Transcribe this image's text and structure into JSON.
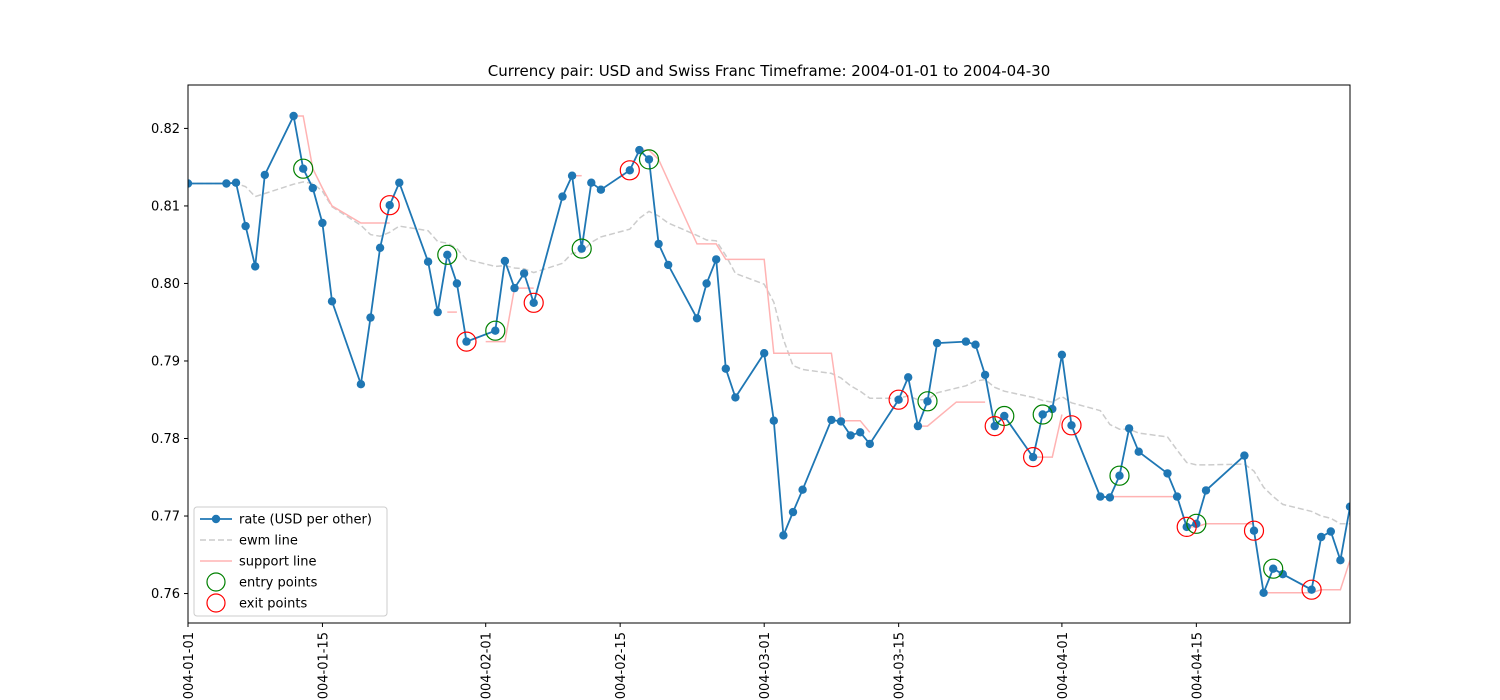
{
  "chart_data": {
    "type": "line",
    "title": "Currency pair: USD and Swiss Franc  Timeframe: 2004-01-01 to 2004-04-30",
    "xlabel": "",
    "ylabel": "",
    "xlim": [
      "2004-01-01",
      "2004-04-30"
    ],
    "ylim": [
      0.7562,
      0.8256
    ],
    "x_ticks": [
      "2004-01-01",
      "2004-01-15",
      "2004-02-01",
      "2004-02-15",
      "2004-03-01",
      "2004-03-15",
      "2004-04-01",
      "2004-04-15"
    ],
    "y_ticks": [
      0.76,
      0.77,
      0.78,
      0.79,
      0.8,
      0.81,
      0.82
    ],
    "y_tick_labels": [
      "0.76",
      "0.77",
      "0.78",
      "0.79",
      "0.80",
      "0.81",
      "0.82"
    ],
    "grid": false,
    "legend": {
      "placement": "lower-left",
      "entries": [
        {
          "label": "rate (USD per other)",
          "style": "line-marker",
          "color": "#1f77b4"
        },
        {
          "label": "ewm line",
          "style": "dashed",
          "color": "#cccccc"
        },
        {
          "label": "support line",
          "style": "line",
          "color": "#ffb3b3"
        },
        {
          "label": "entry points",
          "style": "circle",
          "color": "#008000"
        },
        {
          "label": "exit points",
          "style": "circle",
          "color": "#ff0000"
        }
      ]
    },
    "series": [
      {
        "name": "rate (USD per other)",
        "color": "#1f77b4",
        "points": [
          [
            "2004-01-01",
            0.8129
          ],
          [
            "2004-01-05",
            0.8129
          ],
          [
            "2004-01-06",
            0.813
          ],
          [
            "2004-01-07",
            0.8074
          ],
          [
            "2004-01-08",
            0.8022
          ],
          [
            "2004-01-09",
            0.814
          ],
          [
            "2004-01-12",
            0.8216
          ],
          [
            "2004-01-13",
            0.8148
          ],
          [
            "2004-01-14",
            0.8123
          ],
          [
            "2004-01-15",
            0.8078
          ],
          [
            "2004-01-16",
            0.7977
          ],
          [
            "2004-01-19",
            0.787
          ],
          [
            "2004-01-20",
            0.7956
          ],
          [
            "2004-01-21",
            0.8046
          ],
          [
            "2004-01-22",
            0.8101
          ],
          [
            "2004-01-23",
            0.813
          ],
          [
            "2004-01-26",
            0.8028
          ],
          [
            "2004-01-27",
            0.7963
          ],
          [
            "2004-01-28",
            0.8037
          ],
          [
            "2004-01-29",
            0.8
          ],
          [
            "2004-01-30",
            0.7925
          ],
          [
            "2004-02-02",
            0.7939
          ],
          [
            "2004-02-03",
            0.8029
          ],
          [
            "2004-02-04",
            0.7994
          ],
          [
            "2004-02-05",
            0.8013
          ],
          [
            "2004-02-06",
            0.7975
          ],
          [
            "2004-02-09",
            0.8112
          ],
          [
            "2004-02-10",
            0.8139
          ],
          [
            "2004-02-11",
            0.8045
          ],
          [
            "2004-02-12",
            0.813
          ],
          [
            "2004-02-13",
            0.8121
          ],
          [
            "2004-02-16",
            0.8146
          ],
          [
            "2004-02-17",
            0.8172
          ],
          [
            "2004-02-18",
            0.816
          ],
          [
            "2004-02-19",
            0.8051
          ],
          [
            "2004-02-20",
            0.8024
          ],
          [
            "2004-02-23",
            0.7955
          ],
          [
            "2004-02-24",
            0.8
          ],
          [
            "2004-02-25",
            0.8031
          ],
          [
            "2004-02-26",
            0.789
          ],
          [
            "2004-02-27",
            0.7853
          ],
          [
            "2004-03-01",
            0.791
          ],
          [
            "2004-03-02",
            0.7823
          ],
          [
            "2004-03-03",
            0.7675
          ],
          [
            "2004-03-04",
            0.7705
          ],
          [
            "2004-03-05",
            0.7734
          ],
          [
            "2004-03-08",
            0.7824
          ],
          [
            "2004-03-09",
            0.7822
          ],
          [
            "2004-03-10",
            0.7804
          ],
          [
            "2004-03-11",
            0.7808
          ],
          [
            "2004-03-12",
            0.7793
          ],
          [
            "2004-03-15",
            0.785
          ],
          [
            "2004-03-16",
            0.7879
          ],
          [
            "2004-03-17",
            0.7816
          ],
          [
            "2004-03-18",
            0.7848
          ],
          [
            "2004-03-19",
            0.7923
          ],
          [
            "2004-03-22",
            0.7925
          ],
          [
            "2004-03-23",
            0.7921
          ],
          [
            "2004-03-24",
            0.7882
          ],
          [
            "2004-03-25",
            0.7816
          ],
          [
            "2004-03-26",
            0.7829
          ],
          [
            "2004-03-29",
            0.7776
          ],
          [
            "2004-03-30",
            0.7831
          ],
          [
            "2004-03-31",
            0.7838
          ],
          [
            "2004-04-01",
            0.7908
          ],
          [
            "2004-04-02",
            0.7817
          ],
          [
            "2004-04-05",
            0.7725
          ],
          [
            "2004-04-06",
            0.7724
          ],
          [
            "2004-04-07",
            0.7752
          ],
          [
            "2004-04-08",
            0.7813
          ],
          [
            "2004-04-09",
            0.7783
          ],
          [
            "2004-04-12",
            0.7755
          ],
          [
            "2004-04-13",
            0.7725
          ],
          [
            "2004-04-14",
            0.7686
          ],
          [
            "2004-04-15",
            0.769
          ],
          [
            "2004-04-16",
            0.7733
          ],
          [
            "2004-04-20",
            0.7778
          ],
          [
            "2004-04-21",
            0.7681
          ],
          [
            "2004-04-22",
            0.7601
          ],
          [
            "2004-04-23",
            0.7632
          ],
          [
            "2004-04-24",
            0.7625
          ],
          [
            "2004-04-27",
            0.7605
          ],
          [
            "2004-04-28",
            0.7673
          ],
          [
            "2004-04-29",
            0.768
          ],
          [
            "2004-04-30",
            0.7643
          ],
          [
            "2004-05-01",
            0.7712
          ]
        ]
      },
      {
        "name": "ewm line",
        "color": "#cccccc",
        "points": [
          [
            "2004-01-01",
            0.8129
          ],
          [
            "2004-01-05",
            0.8129
          ],
          [
            "2004-01-06",
            0.8129
          ],
          [
            "2004-01-07",
            0.8125
          ],
          [
            "2004-01-08",
            0.8112
          ],
          [
            "2004-01-09",
            0.8116
          ],
          [
            "2004-01-12",
            0.8128
          ],
          [
            "2004-01-13",
            0.8131
          ],
          [
            "2004-01-14",
            0.8129
          ],
          [
            "2004-01-15",
            0.8119
          ],
          [
            "2004-01-16",
            0.8099
          ],
          [
            "2004-01-19",
            0.8075
          ],
          [
            "2004-01-20",
            0.8063
          ],
          [
            "2004-01-21",
            0.8061
          ],
          [
            "2004-01-22",
            0.8066
          ],
          [
            "2004-01-23",
            0.8074
          ],
          [
            "2004-01-26",
            0.8068
          ],
          [
            "2004-01-27",
            0.8054
          ],
          [
            "2004-01-28",
            0.8052
          ],
          [
            "2004-01-29",
            0.8045
          ],
          [
            "2004-01-30",
            0.8031
          ],
          [
            "2004-02-02",
            0.8022
          ],
          [
            "2004-02-03",
            0.8023
          ],
          [
            "2004-02-04",
            0.802
          ],
          [
            "2004-02-05",
            0.8019
          ],
          [
            "2004-02-06",
            0.8014
          ],
          [
            "2004-02-09",
            0.8026
          ],
          [
            "2004-02-10",
            0.8039
          ],
          [
            "2004-02-11",
            0.804
          ],
          [
            "2004-02-12",
            0.8053
          ],
          [
            "2004-02-13",
            0.806
          ],
          [
            "2004-02-16",
            0.807
          ],
          [
            "2004-02-17",
            0.8084
          ],
          [
            "2004-02-18",
            0.8093
          ],
          [
            "2004-02-19",
            0.8087
          ],
          [
            "2004-02-20",
            0.8078
          ],
          [
            "2004-02-23",
            0.8062
          ],
          [
            "2004-02-24",
            0.8056
          ],
          [
            "2004-02-25",
            0.8055
          ],
          [
            "2004-02-26",
            0.8036
          ],
          [
            "2004-02-27",
            0.8013
          ],
          [
            "2004-03-01",
            0.7999
          ],
          [
            "2004-03-02",
            0.7976
          ],
          [
            "2004-03-03",
            0.7928
          ],
          [
            "2004-03-04",
            0.7894
          ],
          [
            "2004-03-05",
            0.7889
          ],
          [
            "2004-03-08",
            0.7884
          ],
          [
            "2004-03-09",
            0.7878
          ],
          [
            "2004-03-10",
            0.7868
          ],
          [
            "2004-03-11",
            0.7861
          ],
          [
            "2004-03-12",
            0.7852
          ],
          [
            "2004-03-15",
            0.7852
          ],
          [
            "2004-03-16",
            0.7855
          ],
          [
            "2004-03-17",
            0.785
          ],
          [
            "2004-03-18",
            0.785
          ],
          [
            "2004-03-19",
            0.7859
          ],
          [
            "2004-03-22",
            0.7868
          ],
          [
            "2004-03-23",
            0.7874
          ],
          [
            "2004-03-24",
            0.7876
          ],
          [
            "2004-03-25",
            0.7866
          ],
          [
            "2004-03-26",
            0.7861
          ],
          [
            "2004-03-29",
            0.7853
          ],
          [
            "2004-03-30",
            0.7849
          ],
          [
            "2004-03-31",
            0.7847
          ],
          [
            "2004-04-01",
            0.7854
          ],
          [
            "2004-04-02",
            0.7846
          ],
          [
            "2004-04-05",
            0.7836
          ],
          [
            "2004-04-06",
            0.7818
          ],
          [
            "2004-04-07",
            0.7812
          ],
          [
            "2004-04-08",
            0.7812
          ],
          [
            "2004-04-09",
            0.7807
          ],
          [
            "2004-04-12",
            0.7802
          ],
          [
            "2004-04-13",
            0.7785
          ],
          [
            "2004-04-14",
            0.7769
          ],
          [
            "2004-04-15",
            0.7766
          ],
          [
            "2004-04-16",
            0.7766
          ],
          [
            "2004-04-20",
            0.7767
          ],
          [
            "2004-04-21",
            0.7758
          ],
          [
            "2004-04-22",
            0.7737
          ],
          [
            "2004-04-23",
            0.7725
          ],
          [
            "2004-04-24",
            0.7715
          ],
          [
            "2004-04-27",
            0.7706
          ],
          [
            "2004-04-28",
            0.77
          ],
          [
            "2004-04-29",
            0.7697
          ],
          [
            "2004-04-30",
            0.769
          ],
          [
            "2004-05-01",
            0.769
          ]
        ]
      }
    ],
    "support_line": {
      "name": "support line",
      "color": "#ffb3b3",
      "segments": [
        [
          [
            "2004-01-12",
            0.8216
          ],
          [
            "2004-01-13",
            0.8216
          ],
          [
            "2004-01-14",
            0.8148
          ],
          [
            "2004-01-15",
            0.8123
          ],
          [
            "2004-01-16",
            0.81
          ],
          [
            "2004-01-19",
            0.8078
          ],
          [
            "2004-01-22",
            0.8078
          ]
        ],
        [
          [
            "2004-01-28",
            0.7963
          ],
          [
            "2004-01-29",
            0.7963
          ]
        ],
        [
          [
            "2004-02-01",
            0.7925
          ],
          [
            "2004-02-03",
            0.7925
          ],
          [
            "2004-02-04",
            0.7994
          ],
          [
            "2004-02-06",
            0.7994
          ]
        ],
        [
          [
            "2004-02-10",
            0.8139
          ],
          [
            "2004-02-11",
            0.8139
          ]
        ],
        [
          [
            "2004-02-17",
            0.8172
          ],
          [
            "2004-02-18",
            0.8172
          ],
          [
            "2004-02-19",
            0.816
          ],
          [
            "2004-02-23",
            0.8051
          ],
          [
            "2004-02-25",
            0.8051
          ],
          [
            "2004-02-26",
            0.8031
          ],
          [
            "2004-03-01",
            0.8031
          ],
          [
            "2004-03-02",
            0.791
          ],
          [
            "2004-03-08",
            0.791
          ],
          [
            "2004-03-09",
            0.7823
          ],
          [
            "2004-03-11",
            0.7823
          ],
          [
            "2004-03-12",
            0.7808
          ]
        ],
        [
          [
            "2004-03-17",
            0.7816
          ],
          [
            "2004-03-18",
            0.7816
          ],
          [
            "2004-03-21",
            0.7847
          ],
          [
            "2004-03-24",
            0.7847
          ]
        ],
        [
          [
            "2004-03-29",
            0.7776
          ],
          [
            "2004-03-31",
            0.7776
          ],
          [
            "2004-04-01",
            0.7831
          ]
        ],
        [
          [
            "2004-04-06",
            0.7725
          ],
          [
            "2004-04-13",
            0.7725
          ],
          [
            "2004-04-14",
            0.7686
          ],
          [
            "2004-04-15",
            0.7686
          ],
          [
            "2004-04-16",
            0.769
          ],
          [
            "2004-04-21",
            0.769
          ]
        ],
        [
          [
            "2004-04-22",
            0.7601
          ],
          [
            "2004-04-27",
            0.7601
          ],
          [
            "2004-04-28",
            0.7605
          ],
          [
            "2004-04-30",
            0.7605
          ],
          [
            "2004-05-01",
            0.7643
          ]
        ]
      ]
    },
    "entry_points": [
      [
        "2004-01-13",
        0.8148
      ],
      [
        "2004-01-28",
        0.8037
      ],
      [
        "2004-02-02",
        0.7939
      ],
      [
        "2004-02-11",
        0.8045
      ],
      [
        "2004-02-18",
        0.816
      ],
      [
        "2004-03-18",
        0.7848
      ],
      [
        "2004-03-26",
        0.7829
      ],
      [
        "2004-03-30",
        0.7831
      ],
      [
        "2004-04-07",
        0.7752
      ],
      [
        "2004-04-15",
        0.769
      ],
      [
        "2004-04-23",
        0.7632
      ]
    ],
    "exit_points": [
      [
        "2004-01-22",
        0.8101
      ],
      [
        "2004-01-30",
        0.7925
      ],
      [
        "2004-02-06",
        0.7975
      ],
      [
        "2004-02-16",
        0.8146
      ],
      [
        "2004-03-15",
        0.785
      ],
      [
        "2004-03-25",
        0.7816
      ],
      [
        "2004-03-29",
        0.7776
      ],
      [
        "2004-04-02",
        0.7817
      ],
      [
        "2004-04-14",
        0.7686
      ],
      [
        "2004-04-21",
        0.7681
      ],
      [
        "2004-04-27",
        0.7605
      ]
    ]
  }
}
